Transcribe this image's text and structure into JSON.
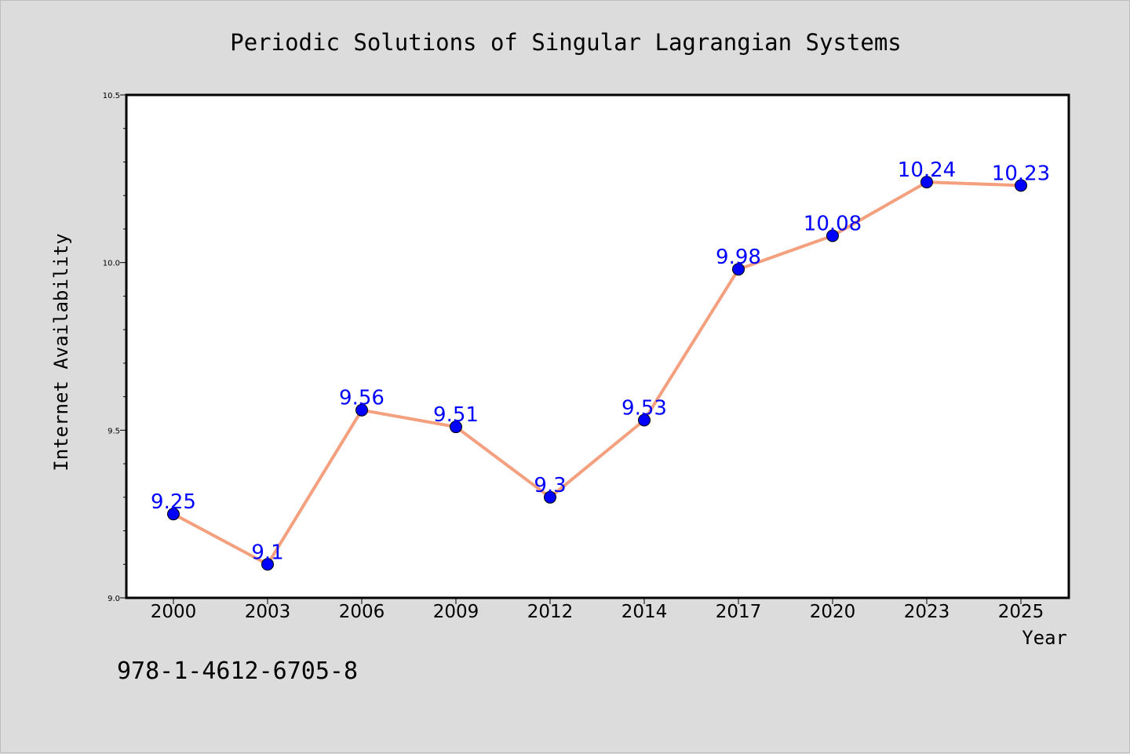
{
  "chart_data": {
    "type": "line",
    "title": "Periodic Solutions of Singular Lagrangian Systems",
    "xlabel": "Year",
    "ylabel": "Internet Availability",
    "categories": [
      "2000",
      "2003",
      "2006",
      "2009",
      "2012",
      "2014",
      "2017",
      "2020",
      "2023",
      "2025"
    ],
    "series": [
      {
        "values": [
          9.25,
          9.1,
          9.56,
          9.51,
          9.3,
          9.53,
          9.98,
          10.08,
          10.24,
          10.23
        ],
        "data_labels": [
          "9.25",
          "9.1",
          "9.56",
          "9.51",
          "9.3",
          "9.53",
          "9.98",
          "10.08",
          "10.24",
          "10.23"
        ],
        "line_color": "#f4a07e",
        "marker_color": "#0000ff"
      }
    ],
    "ylim": [
      9.0,
      10.5
    ],
    "yticks": [
      "9.0",
      "9.5",
      "10.0",
      "10.5"
    ],
    "grid": false,
    "legend": "none"
  },
  "footer": {
    "isbn": "978-1-4612-6705-8"
  }
}
